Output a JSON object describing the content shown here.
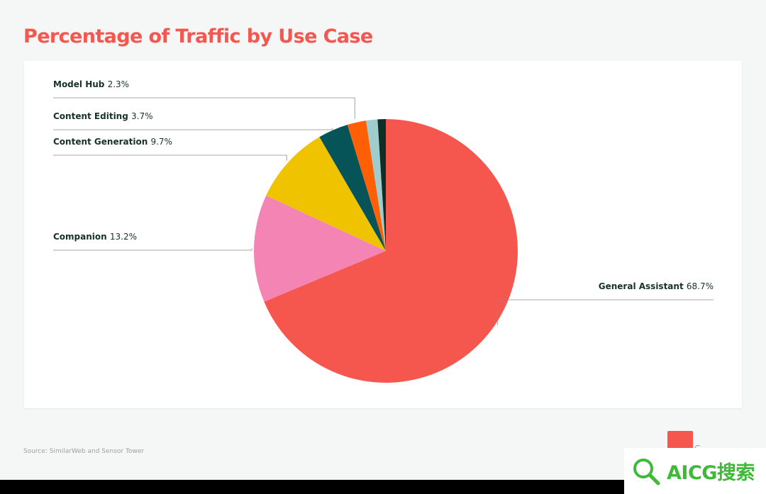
{
  "title": "Percentage of Traffic by Use Case",
  "source": "Source: SimilarWeb and Sensor Tower",
  "watermark": "AICG搜索",
  "logo_mark": "C",
  "colors": {
    "title": "#f5574e",
    "label_text": "#17312b",
    "leader_line": "#8a8a8a"
  },
  "chart_data": {
    "type": "pie",
    "title": "Percentage of Traffic by Use Case",
    "unit": "%",
    "start_angle_deg": 0,
    "direction": "clockwise",
    "slices": [
      {
        "name": "General Assistant",
        "value": 68.7,
        "value_label": "68.7%",
        "color": "#f5574e"
      },
      {
        "name": "Companion",
        "value": 13.2,
        "value_label": "13.2%",
        "color": "#f484b4"
      },
      {
        "name": "Content Generation",
        "value": 9.7,
        "value_label": "9.7%",
        "color": "#f0c300"
      },
      {
        "name": "Content Editing",
        "value": 3.7,
        "value_label": "3.7%",
        "color": "#065457"
      },
      {
        "name": "Model Hub",
        "value": 2.3,
        "value_label": "2.3%",
        "color": "#ff5f05"
      },
      {
        "name": "",
        "value": 1.4,
        "value_label": "",
        "color": "#9fcccc"
      },
      {
        "name": "",
        "value": 1.0,
        "value_label": "",
        "color": "#0f2e24"
      }
    ]
  }
}
